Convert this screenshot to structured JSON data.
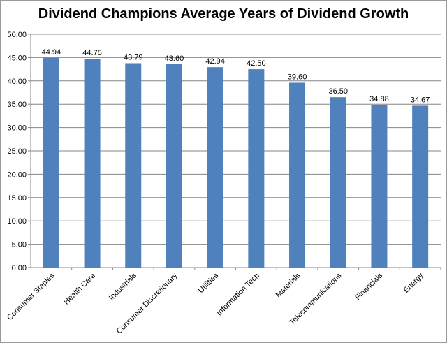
{
  "chart_data": {
    "type": "bar",
    "title": "Dividend Champions Average Years of Dividend Growth",
    "categories": [
      "Consumer Staples",
      "Health Care",
      "Industrials",
      "Consumer Discretionary",
      "Utilities",
      "Information Tech",
      "Materials",
      "Telecommunications",
      "Financials",
      "Energy"
    ],
    "values": [
      44.94,
      44.75,
      43.79,
      43.6,
      42.94,
      42.5,
      39.6,
      36.5,
      34.88,
      34.67
    ],
    "data_labels": [
      "44.94",
      "44.75",
      "43.79",
      "43.60",
      "42.94",
      "42.50",
      "39.60",
      "36.50",
      "34.88",
      "34.67"
    ],
    "ylim": [
      0,
      50
    ],
    "yticks": [
      "0.00",
      "5.00",
      "10.00",
      "15.00",
      "20.00",
      "25.00",
      "30.00",
      "35.00",
      "40.00",
      "45.00",
      "50.00"
    ],
    "xlabel": "",
    "ylabel": "",
    "grid": true,
    "legend": "none",
    "colors": {
      "bar": "#4F81BD",
      "grid": "#868686",
      "axis": "#868686"
    }
  }
}
